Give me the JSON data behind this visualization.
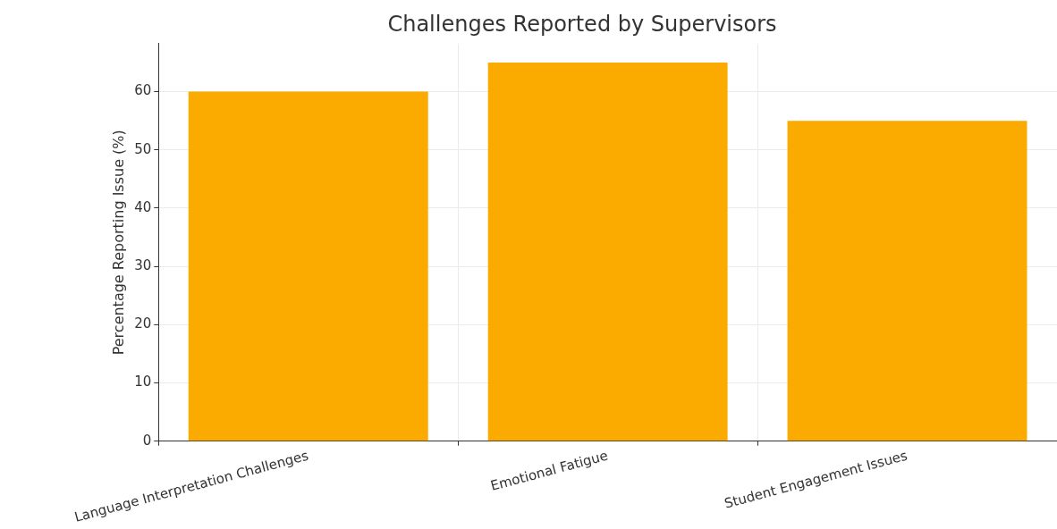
{
  "chart_data": {
    "type": "bar",
    "title": "Challenges Reported by Supervisors",
    "ylabel": "Percentage Reporting Issue (%)",
    "categories": [
      "Language Interpretation Challenges",
      "Emotional Fatigue",
      "Student Engagement Issues"
    ],
    "values": [
      60,
      65,
      55
    ],
    "color": "#fbab00",
    "ylim": [
      0,
      68.25
    ],
    "yticks": [
      0,
      10,
      20,
      30,
      40,
      50,
      60
    ],
    "grid": true
  }
}
